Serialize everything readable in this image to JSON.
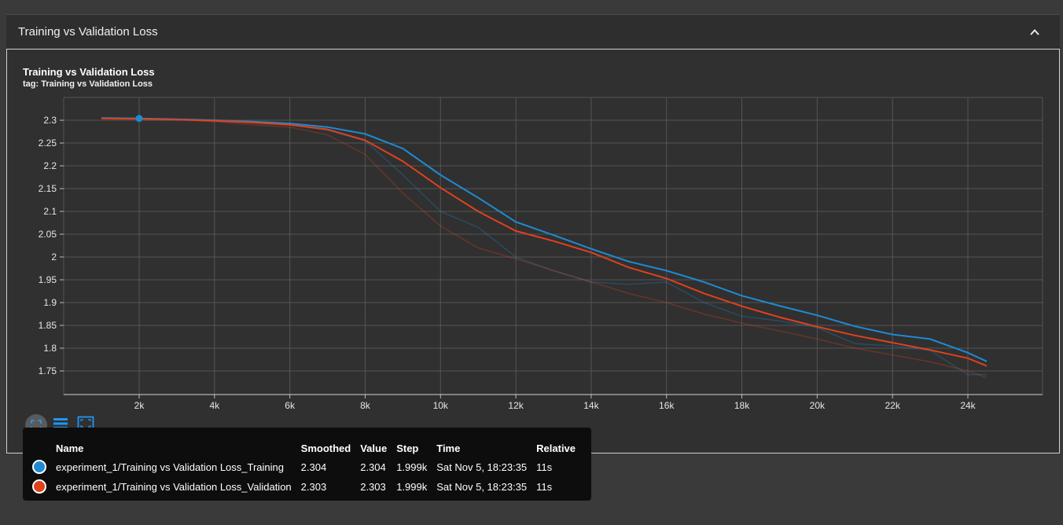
{
  "card": {
    "title": "Training vs Validation Loss"
  },
  "chart_header": {
    "title": "Training vs Validation Loss",
    "tag": "tag: Training vs Validation Loss"
  },
  "icons": {
    "collapse": "chevron-up-icon",
    "zoom": "fit-domain-icon",
    "list": "list-icon",
    "frame": "frame-icon"
  },
  "colors": {
    "training": "#1f8ad1",
    "validation": "#e0411e",
    "grid": "#5a5a5a",
    "background": "#303030"
  },
  "chart_data": {
    "type": "line",
    "title": "Training vs Validation Loss",
    "xlabel": "",
    "ylabel": "",
    "xlim": [
      0,
      26000
    ],
    "ylim": [
      1.725,
      2.325
    ],
    "grid": true,
    "x_ticks": [
      2000,
      4000,
      6000,
      8000,
      10000,
      12000,
      14000,
      16000,
      18000,
      20000,
      22000,
      24000
    ],
    "x_tick_labels": [
      "2k",
      "4k",
      "6k",
      "8k",
      "10k",
      "12k",
      "14k",
      "16k",
      "18k",
      "20k",
      "22k",
      "24k"
    ],
    "y_ticks": [
      1.75,
      1.8,
      1.85,
      1.9,
      1.95,
      2.0,
      2.05,
      2.1,
      2.15,
      2.2,
      2.25,
      2.3
    ],
    "y_tick_labels": [
      "1.75",
      "1.8",
      "1.85",
      "1.9",
      "1.95",
      "2",
      "2.05",
      "2.1",
      "2.15",
      "2.2",
      "2.25",
      "2.3"
    ],
    "x": [
      1000,
      2000,
      3000,
      4000,
      5000,
      6000,
      7000,
      8000,
      9000,
      10000,
      11000,
      12000,
      13000,
      14000,
      15000,
      16000,
      17000,
      18000,
      19000,
      20000,
      21000,
      22000,
      23000,
      24000,
      24500
    ],
    "series": [
      {
        "name": "experiment_1/Training vs Validation Loss_Training",
        "color": "#1f8ad1",
        "smoothed": [
          2.305,
          2.304,
          2.302,
          2.3,
          2.297,
          2.293,
          2.285,
          2.27,
          2.238,
          2.18,
          2.13,
          2.077,
          2.048,
          2.018,
          1.99,
          1.97,
          1.945,
          1.915,
          1.893,
          1.872,
          1.848,
          1.83,
          1.82,
          1.79,
          1.771
        ],
        "values": [
          2.305,
          2.304,
          2.302,
          2.3,
          2.296,
          2.29,
          2.278,
          2.255,
          2.18,
          2.1,
          2.065,
          2.0,
          1.97,
          1.945,
          1.94,
          1.945,
          1.9,
          1.87,
          1.86,
          1.845,
          1.81,
          1.805,
          1.795,
          1.742,
          1.742
        ]
      },
      {
        "name": "experiment_1/Training vs Validation Loss_Validation",
        "color": "#e0411e",
        "smoothed": [
          2.304,
          2.303,
          2.301,
          2.299,
          2.295,
          2.29,
          2.28,
          2.256,
          2.21,
          2.152,
          2.1,
          2.057,
          2.035,
          2.01,
          1.977,
          1.953,
          1.92,
          1.892,
          1.868,
          1.847,
          1.828,
          1.812,
          1.796,
          1.778,
          1.761
        ],
        "values": [
          2.304,
          2.303,
          2.301,
          2.297,
          2.29,
          2.285,
          2.268,
          2.225,
          2.14,
          2.068,
          2.02,
          1.996,
          1.97,
          1.945,
          1.92,
          1.9,
          1.875,
          1.855,
          1.838,
          1.82,
          1.8,
          1.785,
          1.77,
          1.75,
          1.735
        ]
      }
    ]
  },
  "tooltip": {
    "headers": {
      "name": "Name",
      "smoothed": "Smoothed",
      "value": "Value",
      "step": "Step",
      "time": "Time",
      "relative": "Relative"
    },
    "rows": [
      {
        "color": "#1f8ad1",
        "name": "experiment_1/Training vs Validation Loss_Training",
        "smoothed": "2.304",
        "value": "2.304",
        "step": "1.999k",
        "time": "Sat Nov 5, 18:23:35",
        "relative": "11s"
      },
      {
        "color": "#e0411e",
        "name": "experiment_1/Training vs Validation Loss_Validation",
        "smoothed": "2.303",
        "value": "2.303",
        "step": "1.999k",
        "time": "Sat Nov 5, 18:23:35",
        "relative": "11s"
      }
    ]
  },
  "hover": {
    "step": 2000,
    "value": 2.304
  }
}
